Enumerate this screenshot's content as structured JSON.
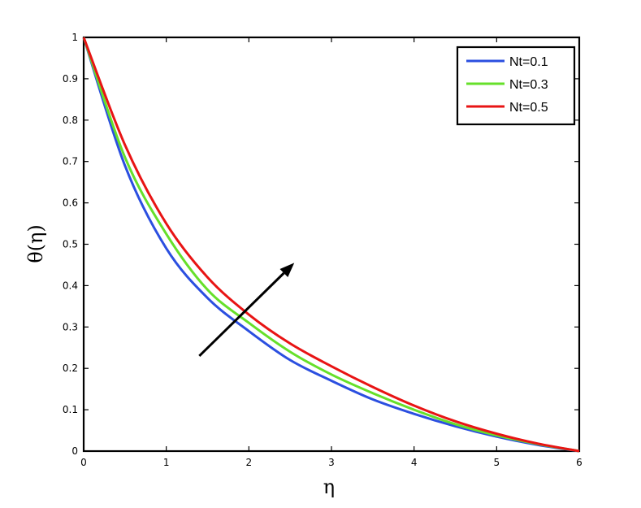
{
  "chart_data": {
    "type": "line",
    "xlabel": "η",
    "ylabel": "θ(η)",
    "xlim": [
      0,
      6
    ],
    "ylim": [
      0,
      1
    ],
    "x_ticks": [
      "0",
      "1",
      "2",
      "3",
      "4",
      "5",
      "6"
    ],
    "y_ticks": [
      "0",
      "0.1",
      "0.2",
      "0.3",
      "0.4",
      "0.5",
      "0.6",
      "0.7",
      "0.8",
      "0.9",
      "1"
    ],
    "grid": false,
    "legend_position": "top-right",
    "x": [
      0,
      0.5,
      1,
      1.5,
      2,
      2.5,
      3,
      3.5,
      4,
      4.5,
      5,
      5.5,
      6
    ],
    "series": [
      {
        "name": "Nt=0.1",
        "color": "#2b4fe0",
        "values": [
          1.0,
          0.69,
          0.49,
          0.37,
          0.29,
          0.22,
          0.17,
          0.125,
          0.09,
          0.06,
          0.035,
          0.015,
          0.0
        ]
      },
      {
        "name": "Nt=0.3",
        "color": "#66e02a",
        "values": [
          1.0,
          0.71,
          0.525,
          0.39,
          0.31,
          0.24,
          0.185,
          0.14,
          0.1,
          0.065,
          0.038,
          0.017,
          0.0
        ]
      },
      {
        "name": "Nt=0.5",
        "color": "#e81414",
        "values": [
          1.0,
          0.74,
          0.55,
          0.42,
          0.33,
          0.26,
          0.205,
          0.155,
          0.11,
          0.072,
          0.042,
          0.018,
          0.0
        ]
      }
    ],
    "annotation": {
      "type": "arrow",
      "from": [
        1.4,
        0.23
      ],
      "to": [
        2.55,
        0.455
      ],
      "color": "#000000"
    }
  }
}
